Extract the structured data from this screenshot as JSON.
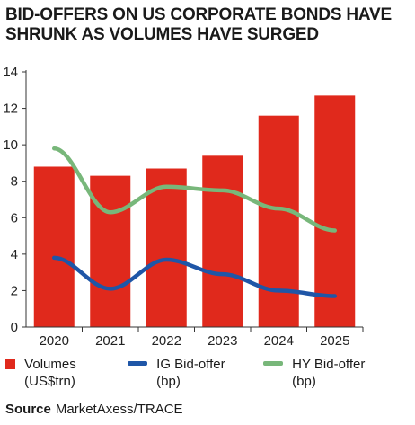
{
  "title_lines": [
    "BID-OFFERS ON US CORPORATE BONDS HAVE",
    "SHRUNK AS VOLUMES HAVE SURGED"
  ],
  "source": {
    "label": "Source",
    "text": "MarketAxess/TRACE"
  },
  "colors": {
    "bar": "#e0291c",
    "ig": "#1f56a7",
    "hy": "#78b77a",
    "axis": "#333333"
  },
  "legend": [
    {
      "label": [
        "Volumes",
        "(US$trn)"
      ],
      "kind": "bar",
      "color": "#e0291c"
    },
    {
      "label": [
        "IG Bid-offer",
        "(bp)"
      ],
      "kind": "line",
      "color": "#1f56a7"
    },
    {
      "label": [
        "HY Bid-offer",
        "(bp)"
      ],
      "kind": "line",
      "color": "#78b77a"
    }
  ],
  "chart_data": {
    "type": "bar",
    "categories": [
      "2020",
      "2021",
      "2022",
      "2023",
      "2024",
      "2025"
    ],
    "ylim": [
      0,
      14
    ],
    "yticks": [
      0,
      2,
      4,
      6,
      8,
      10,
      12,
      14
    ],
    "series": [
      {
        "name": "Volumes (US$trn)",
        "type": "bar",
        "values": [
          8.8,
          8.3,
          8.7,
          9.4,
          11.6,
          12.7
        ]
      },
      {
        "name": "IG Bid-offer (bp)",
        "type": "line",
        "values": [
          3.8,
          2.1,
          3.7,
          2.9,
          2.0,
          1.7
        ]
      },
      {
        "name": "HY Bid-offer (bp)",
        "type": "line",
        "values": [
          9.8,
          6.3,
          7.7,
          7.5,
          6.5,
          5.3
        ]
      }
    ],
    "legend_position": "bottom",
    "grid": false
  }
}
